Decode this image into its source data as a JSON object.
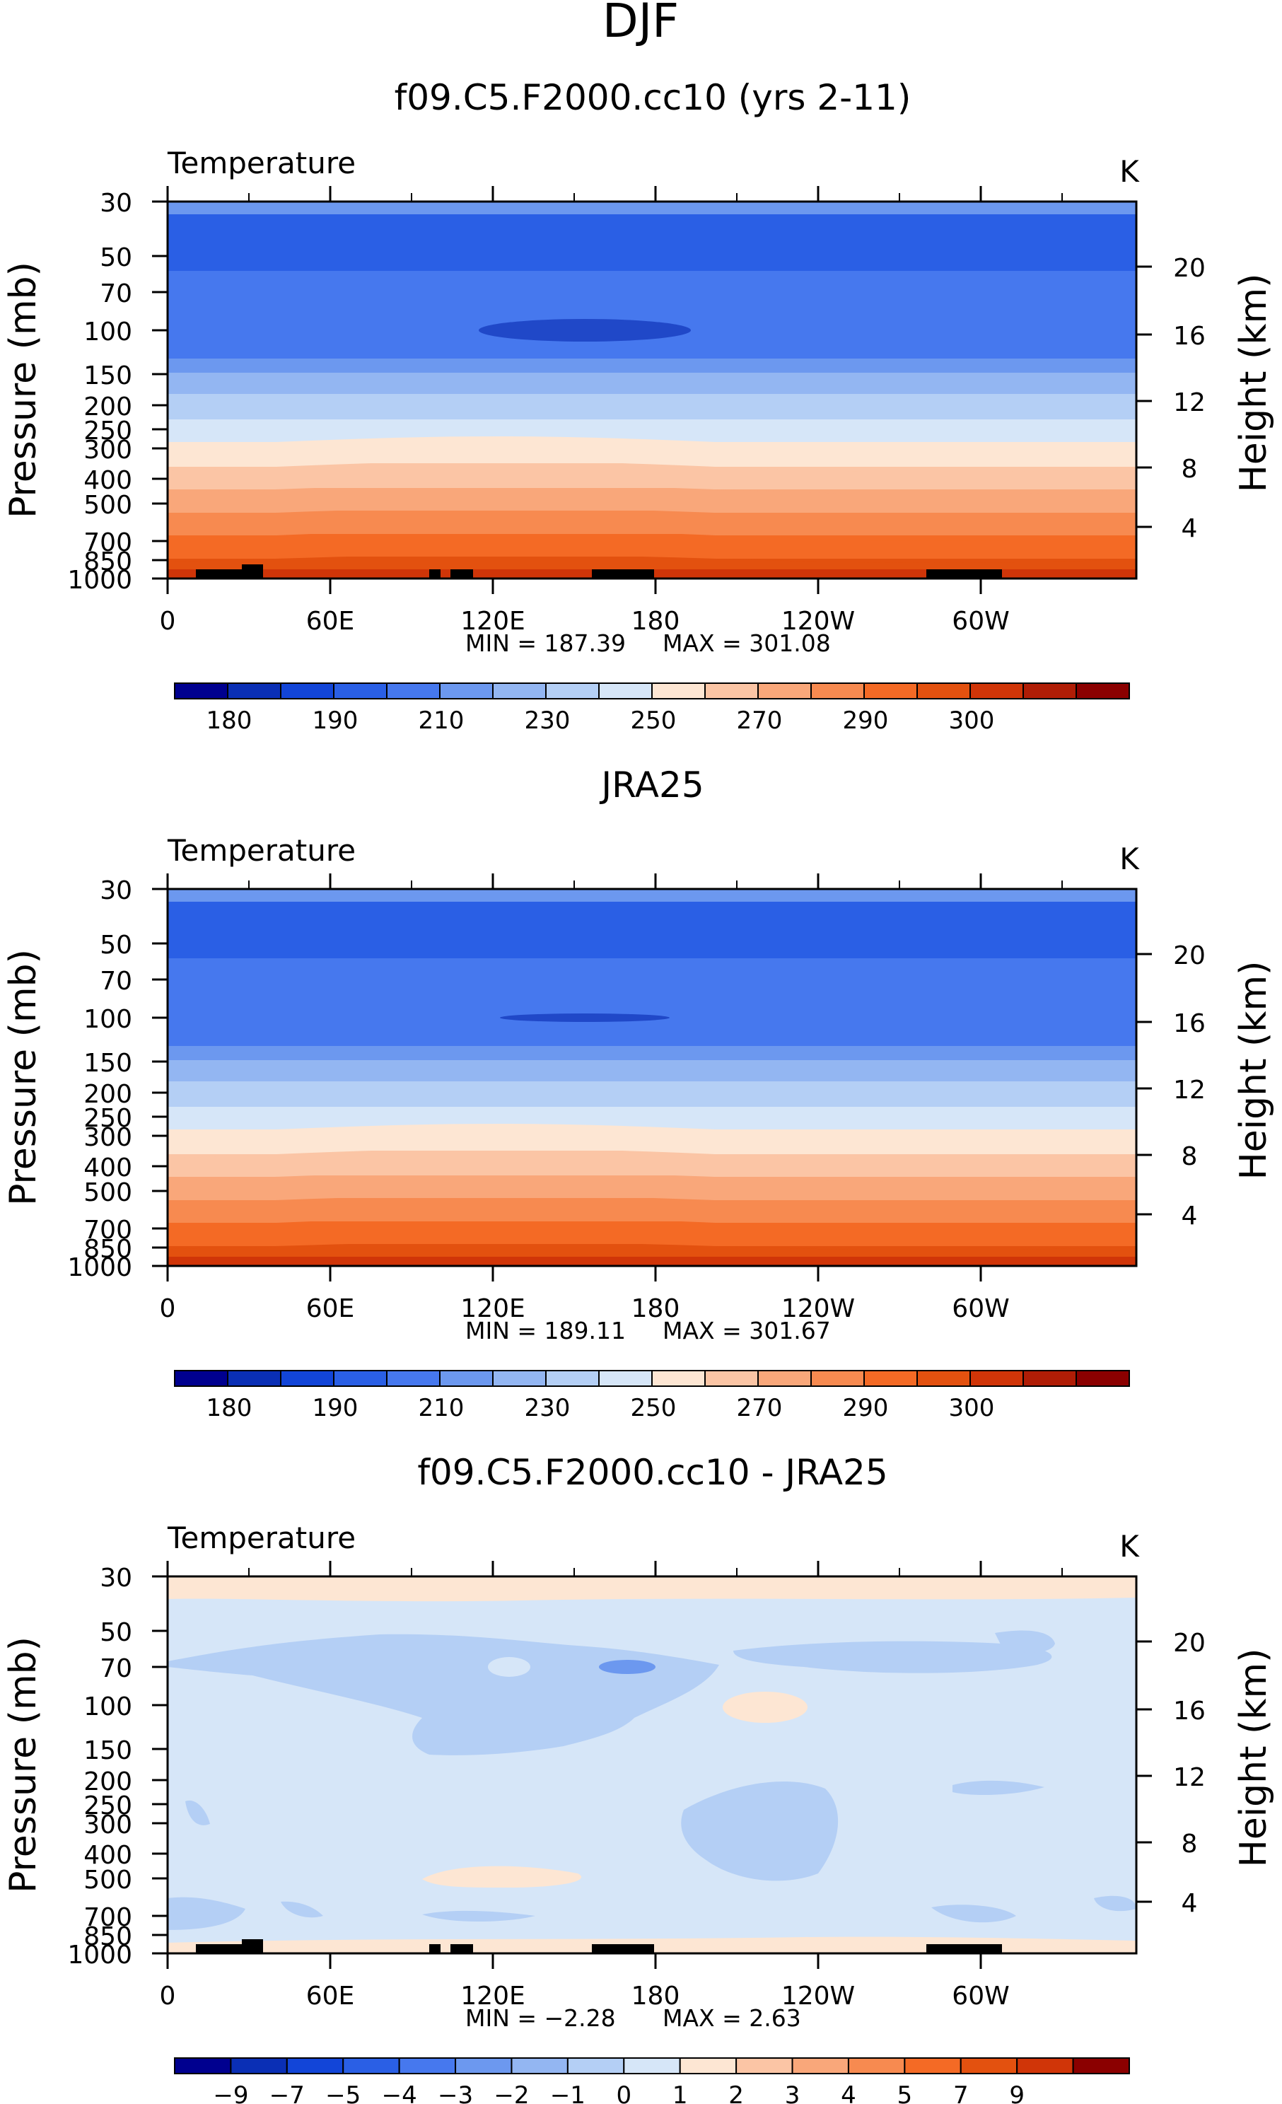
{
  "page_title": "DJF",
  "colors": {
    "model_levels": [
      "#e3510f",
      "#f46a25",
      "#f78a50",
      "#f9a77a",
      "#fbc5a5",
      "#fde6d3",
      "#d6e6f8",
      "#b4cff5",
      "#93b6f2",
      "#6c98ef",
      "#4678ee",
      "#2a5fe5"
    ],
    "model_hole": "#2048c8",
    "diff_band": "#fde6d3",
    "diff_bg": "#d6e6f8",
    "diff_neg": "#b4cff5",
    "diff_neg2": "#6c98ef",
    "terrain": "#000000"
  },
  "colorbar_abs": {
    "colors": [
      "#00008f",
      "#0a2fb5",
      "#1245d8",
      "#2a5fe5",
      "#4678ee",
      "#6c98ef",
      "#93b6f2",
      "#b4cff5",
      "#d6e6f8",
      "#fde6d3",
      "#fbc5a5",
      "#f9a77a",
      "#f78a50",
      "#f46a25",
      "#e3510f",
      "#d03508",
      "#b01d06",
      "#8b0000"
    ],
    "labels": [
      "180",
      "190",
      "210",
      "230",
      "250",
      "270",
      "290",
      "300"
    ]
  },
  "colorbar_diff": {
    "colors": [
      "#00008f",
      "#0a2fb5",
      "#1245d8",
      "#2a5fe5",
      "#4678ee",
      "#6c98ef",
      "#93b6f2",
      "#b4cff5",
      "#d6e6f8",
      "#fde6d3",
      "#fbc5a5",
      "#f9a77a",
      "#f78a50",
      "#f46a25",
      "#e3510f",
      "#d03508",
      "#8b0000"
    ],
    "labels": [
      "−9",
      "−7",
      "−5",
      "−4",
      "−3",
      "−2",
      "−1",
      "0",
      "1",
      "2",
      "3",
      "4",
      "5",
      "7",
      "9"
    ]
  },
  "chart_data": [
    {
      "type": "heatmap",
      "title": "f09.C5.F2000.cc10 (yrs 2-11)",
      "variable": "Temperature",
      "units": "K",
      "xlabel": "",
      "ylabel": "Pressure  (mb)",
      "ylabel_right": "Height  (km)",
      "x_ticks": [
        "0",
        "60E",
        "120E",
        "180",
        "120W",
        "60W"
      ],
      "y_ticks": [
        "30",
        "50",
        "70",
        "100",
        "150",
        "200",
        "250",
        "300",
        "400",
        "500",
        "700",
        "850",
        "1000"
      ],
      "y_ticks_right": [
        "20",
        "16",
        "12",
        "8",
        "4"
      ],
      "min_label": "MIN  =  187.39",
      "max_label": "MAX  =  301.08",
      "min": 187.39,
      "max": 301.08,
      "contour_levels": [
        180,
        185,
        190,
        200,
        210,
        220,
        230,
        240,
        250,
        260,
        270,
        280,
        290,
        295,
        300
      ]
    },
    {
      "type": "heatmap",
      "title": "JRA25",
      "variable": "Temperature",
      "units": "K",
      "xlabel": "",
      "ylabel": "Pressure  (mb)",
      "ylabel_right": "Height  (km)",
      "x_ticks": [
        "0",
        "60E",
        "120E",
        "180",
        "120W",
        "60W"
      ],
      "y_ticks": [
        "30",
        "50",
        "70",
        "100",
        "150",
        "200",
        "250",
        "300",
        "400",
        "500",
        "700",
        "850",
        "1000"
      ],
      "y_ticks_right": [
        "20",
        "16",
        "12",
        "8",
        "4"
      ],
      "min_label": "MIN  =  189.11",
      "max_label": "MAX  =  301.67",
      "min": 189.11,
      "max": 301.67,
      "contour_levels": [
        180,
        185,
        190,
        200,
        210,
        220,
        230,
        240,
        250,
        260,
        270,
        280,
        290,
        295,
        300
      ]
    },
    {
      "type": "heatmap",
      "title": "f09.C5.F2000.cc10 - JRA25",
      "variable": "Temperature",
      "units": "K",
      "xlabel": "",
      "ylabel": "Pressure  (mb)",
      "ylabel_right": "Height  (km)",
      "x_ticks": [
        "0",
        "60E",
        "120E",
        "180",
        "120W",
        "60W"
      ],
      "y_ticks": [
        "30",
        "50",
        "70",
        "100",
        "150",
        "200",
        "250",
        "300",
        "400",
        "500",
        "700",
        "850",
        "1000"
      ],
      "y_ticks_right": [
        "20",
        "16",
        "12",
        "8",
        "4"
      ],
      "min_label": "MIN  =    −2.28",
      "max_label": "MAX  =      2.63",
      "min": -2.28,
      "max": 2.63,
      "contour_levels": [
        -9,
        -7,
        -5,
        -4,
        -3,
        -2,
        -1,
        0,
        1,
        2,
        3,
        4,
        5,
        7,
        9
      ]
    }
  ]
}
